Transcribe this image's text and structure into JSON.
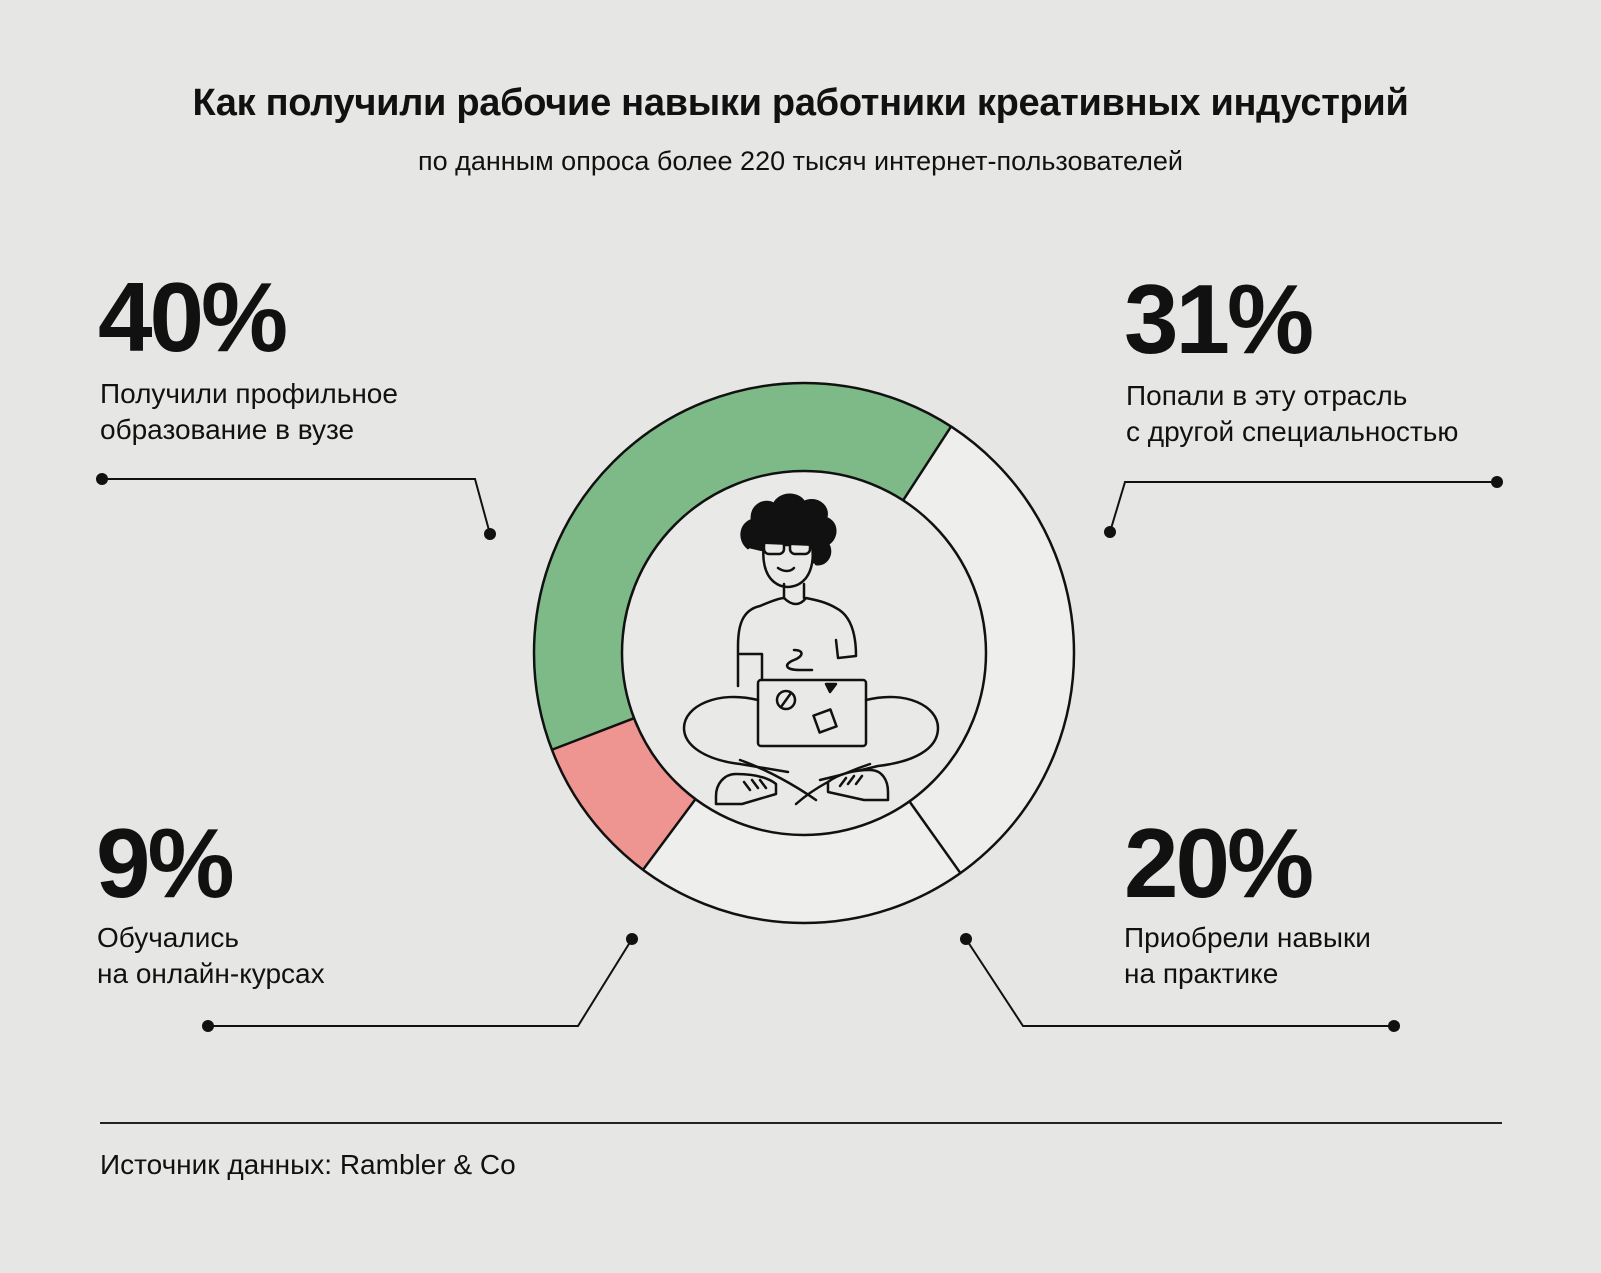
{
  "header": {
    "title": "Как получили рабочие навыки работники креативных индустрий",
    "subtitle": "по данным опроса более 220 тысяч интернет-пользователей"
  },
  "chart_data": {
    "type": "pie",
    "title": "Как получили рабочие навыки работники креативных индустрий",
    "subtitle": "по данным опроса более 220 тысяч интернет-пользователей",
    "unit": "%",
    "slices": [
      {
        "label": "31%",
        "value": 31,
        "name_lines": [
          "Попали в эту отрасль",
          "с другой специальностью"
        ],
        "color": "#eeeeec"
      },
      {
        "label": "20%",
        "value": 20,
        "name_lines": [
          "Приобрели навыки",
          "на практике"
        ],
        "color": "#eeeeec"
      },
      {
        "label": "9%",
        "value": 9,
        "name_lines": [
          "Обучались",
          "на онлайн-курсах"
        ],
        "color": "#ef9591"
      },
      {
        "label": "40%",
        "value": 40,
        "name_lines": [
          "Получили профильное",
          "образование в вузе"
        ],
        "color": "#7dba88"
      }
    ]
  },
  "callouts": {
    "top_left": {
      "pct": "40%",
      "line1": "Получили профильное",
      "line2": "образование в вузе"
    },
    "top_right": {
      "pct": "31%",
      "line1": "Попали в эту отрасль",
      "line2": "с другой специальностью"
    },
    "bottom_left": {
      "pct": "9%",
      "line1": "Обучались",
      "line2": "на онлайн-курсах"
    },
    "bottom_right": {
      "pct": "20%",
      "line1": "Приобрели навыки",
      "line2": "на практике"
    }
  },
  "footer": {
    "source": "Источник данных: Rambler & Co"
  },
  "colors": {
    "background": "#e6e6e4",
    "green": "#7dba88",
    "red": "#ef9591",
    "ink": "#111111"
  }
}
